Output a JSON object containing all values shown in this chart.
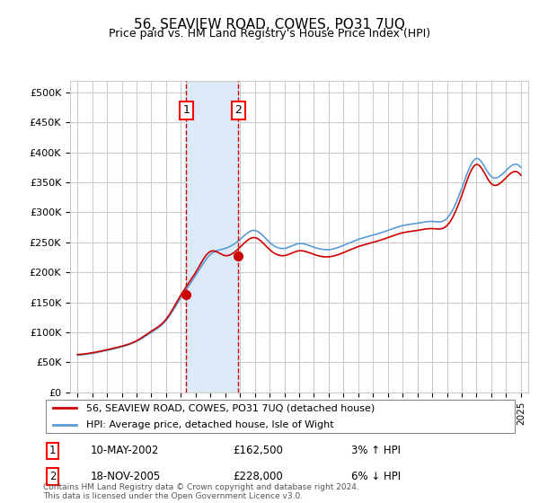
{
  "title": "56, SEAVIEW ROAD, COWES, PO31 7UQ",
  "subtitle": "Price paid vs. HM Land Registry's House Price Index (HPI)",
  "legend_label_red": "56, SEAVIEW ROAD, COWES, PO31 7UQ (detached house)",
  "legend_label_blue": "HPI: Average price, detached house, Isle of Wight",
  "sale1_label": "1",
  "sale1_date": "10-MAY-2002",
  "sale1_price": "£162,500",
  "sale1_hpi": "3% ↑ HPI",
  "sale1_year": 2002.36,
  "sale1_value": 162500,
  "sale2_label": "2",
  "sale2_date": "18-NOV-2005",
  "sale2_price": "£228,000",
  "sale2_hpi": "6% ↓ HPI",
  "sale2_year": 2005.88,
  "sale2_value": 228000,
  "ylim_min": 0,
  "ylim_max": 520000,
  "xlim_min": 1994.5,
  "xlim_max": 2025.5,
  "hpi_shade_color": "#dce9f7",
  "vline_color": "#cc0000",
  "grid_color": "#cccccc",
  "bg_color": "#ffffff",
  "plot_bg_color": "#ffffff",
  "red_line_color": "#cc0000",
  "blue_line_color": "#5b9bd5",
  "footnote": "Contains HM Land Registry data © Crown copyright and database right 2024.\nThis data is licensed under the Open Government Licence v3.0."
}
